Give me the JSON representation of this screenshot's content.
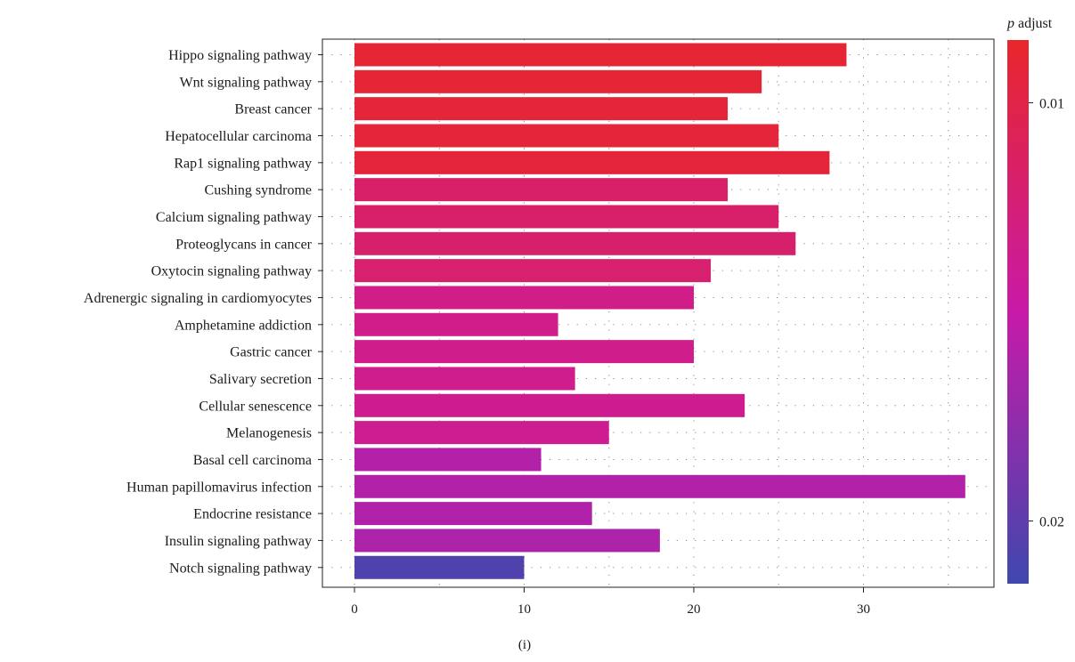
{
  "chart_data": {
    "type": "bar",
    "orientation": "horizontal",
    "categories": [
      "Hippo signaling pathway",
      "Wnt signaling pathway",
      "Breast cancer",
      "Hepatocellular carcinoma",
      "Rap1 signaling pathway",
      "Cushing syndrome",
      "Calcium signaling pathway",
      "Proteoglycans in cancer",
      "Oxytocin signaling pathway",
      "Adrenergic signaling in cardiomyocytes",
      "Amphetamine addiction",
      "Gastric cancer",
      "Salivary secretion",
      "Cellular senescence",
      "Melanogenesis",
      "Basal cell carcinoma",
      "Human papillomavirus infection",
      "Endocrine resistance",
      "Insulin signaling pathway",
      "Notch signaling pathway"
    ],
    "values": [
      29,
      24,
      22,
      25,
      28,
      22,
      25,
      26,
      21,
      20,
      12,
      20,
      13,
      23,
      15,
      11,
      36,
      14,
      18,
      10
    ],
    "p_adjust": [
      0.009,
      0.0091,
      0.0092,
      0.0093,
      0.0094,
      0.0117,
      0.0118,
      0.0119,
      0.012,
      0.0133,
      0.0134,
      0.0135,
      0.0136,
      0.0137,
      0.0138,
      0.016,
      0.0161,
      0.0162,
      0.0163,
      0.0207
    ],
    "xlim": [
      0,
      37
    ],
    "xticks": [
      0,
      10,
      20,
      30
    ],
    "grid": true,
    "legend": {
      "title_italic": "p",
      "title_rest": " adjust",
      "position": "right",
      "range": [
        0.0085,
        0.0215
      ],
      "ticks": [
        0.01,
        0.02
      ],
      "tick_labels": [
        "0.01",
        "0.02"
      ],
      "color_stops": [
        {
          "value": 0.0085,
          "color": "#e8262a"
        },
        {
          "value": 0.015,
          "color": "#c81aa8"
        },
        {
          "value": 0.0215,
          "color": "#3f48ae"
        }
      ]
    },
    "caption": "(i)"
  }
}
